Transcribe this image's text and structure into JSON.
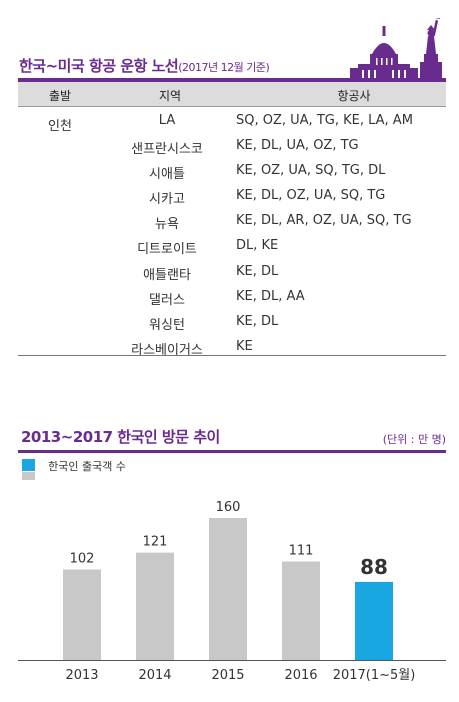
{
  "routes": {
    "title": "한국~미국 항공 운항 노선",
    "subtitle": "(2017년 12월 기준)",
    "headers": [
      "출발",
      "지역",
      "항공사"
    ],
    "origin": "인천",
    "rows": [
      {
        "city": "LA",
        "airlines": "SQ, OZ, UA, TG, KE, LA, AM"
      },
      {
        "city": "샌프란시스코",
        "airlines": "KE, DL, UA, OZ, TG"
      },
      {
        "city": "시애틀",
        "airlines": "KE, OZ, UA, SQ, TG, DL"
      },
      {
        "city": "시카고",
        "airlines": "KE, DL, OZ, UA, SQ, TG"
      },
      {
        "city": "뉴욕",
        "airlines": "KE, DL, AR, OZ, UA, SQ, TG"
      },
      {
        "city": "디트로이트",
        "airlines": "DL, KE"
      },
      {
        "city": "애틀랜타",
        "airlines": "KE, DL"
      },
      {
        "city": "댈러스",
        "airlines": "KE, DL, AA"
      },
      {
        "city": "워싱턴",
        "airlines": "KE, DL"
      },
      {
        "city": "라스베이거스",
        "airlines": "KE"
      }
    ]
  },
  "colors": {
    "accent": "#6a2b8e",
    "highlight": "#1aa6e0",
    "bar": "#c8c8c8",
    "header_bg": "#dcdcdc"
  },
  "chart_data": {
    "type": "bar",
    "title": "2013~2017 한국인 방문 추이",
    "unit": "(단위 : 만 명)",
    "legend": [
      "한국인 출국객 수"
    ],
    "categories": [
      "2013",
      "2014",
      "2015",
      "2016",
      "2017(1~5월)"
    ],
    "values": [
      102,
      121,
      160,
      111,
      88
    ],
    "highlight_index": 4,
    "ylim": [
      0,
      160
    ],
    "grid": false,
    "legend_position": "top-left"
  }
}
